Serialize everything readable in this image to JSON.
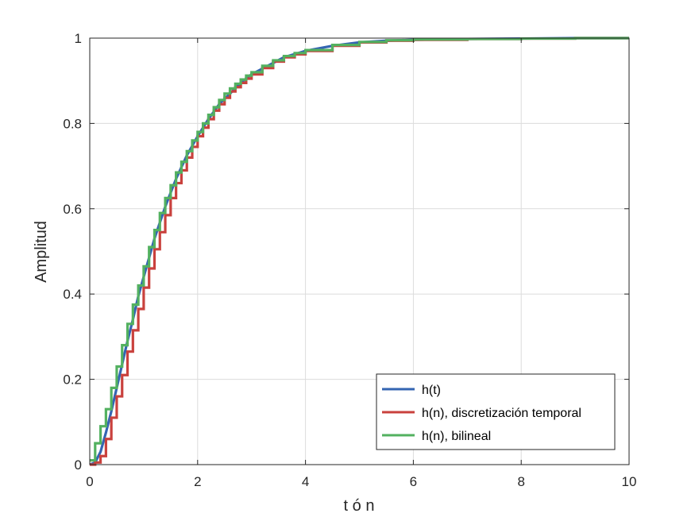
{
  "chart_data": {
    "type": "line",
    "title": "",
    "xlabel": "t ó n",
    "ylabel": "Amplitud",
    "xlim": [
      0,
      10
    ],
    "ylim": [
      0,
      1
    ],
    "xticks": [
      0,
      2,
      4,
      6,
      8,
      10
    ],
    "yticks": [
      0,
      0.2,
      0.4,
      0.6,
      0.8,
      1
    ],
    "xtick_labels": [
      "0",
      "2",
      "4",
      "6",
      "8",
      "10"
    ],
    "ytick_labels": [
      "0",
      "0.2",
      "0.4",
      "0.6",
      "0.8",
      "1"
    ],
    "grid": true,
    "legend_position": "bottom-right",
    "series": [
      {
        "name": "h(t)",
        "color": "#3465b2",
        "style": "continuous",
        "x": [
          0,
          0.1,
          0.2,
          0.3,
          0.4,
          0.5,
          0.6,
          0.7,
          0.8,
          0.9,
          1.0,
          1.2,
          1.4,
          1.6,
          1.8,
          2.0,
          2.2,
          2.4,
          2.6,
          2.8,
          3.0,
          3.3,
          3.6,
          4.0,
          4.5,
          5.0,
          5.5,
          6.0,
          7.0,
          8.0,
          9.0,
          10.0
        ],
        "values": [
          0,
          0.005,
          0.03,
          0.075,
          0.125,
          0.18,
          0.235,
          0.29,
          0.34,
          0.395,
          0.44,
          0.53,
          0.605,
          0.67,
          0.725,
          0.77,
          0.81,
          0.845,
          0.87,
          0.895,
          0.915,
          0.935,
          0.955,
          0.97,
          0.982,
          0.99,
          0.994,
          0.996,
          0.998,
          0.999,
          1.0,
          1.0
        ]
      },
      {
        "name": "h(n), discretización temporal",
        "color": "#c9413d",
        "style": "step",
        "x": [
          0,
          0.1,
          0.2,
          0.3,
          0.4,
          0.5,
          0.6,
          0.7,
          0.8,
          0.9,
          1.0,
          1.1,
          1.2,
          1.3,
          1.4,
          1.5,
          1.6,
          1.7,
          1.8,
          1.9,
          2.0,
          2.1,
          2.2,
          2.3,
          2.4,
          2.5,
          2.6,
          2.7,
          2.8,
          2.9,
          3.0,
          3.2,
          3.4,
          3.6,
          3.8,
          4.0,
          4.5,
          5.0,
          5.5,
          6.0,
          7.0,
          8.0,
          9.0,
          10.0
        ],
        "values": [
          0,
          0.005,
          0.02,
          0.06,
          0.11,
          0.16,
          0.21,
          0.265,
          0.315,
          0.365,
          0.415,
          0.46,
          0.505,
          0.545,
          0.585,
          0.625,
          0.66,
          0.69,
          0.72,
          0.745,
          0.77,
          0.79,
          0.81,
          0.83,
          0.845,
          0.86,
          0.875,
          0.885,
          0.895,
          0.905,
          0.915,
          0.93,
          0.945,
          0.955,
          0.962,
          0.97,
          0.982,
          0.99,
          0.994,
          0.996,
          0.998,
          0.999,
          1.0,
          1.0
        ]
      },
      {
        "name": "h(n), bilineal",
        "color": "#53b160",
        "style": "step",
        "x": [
          0,
          0.1,
          0.2,
          0.3,
          0.4,
          0.5,
          0.6,
          0.7,
          0.8,
          0.9,
          1.0,
          1.1,
          1.2,
          1.3,
          1.4,
          1.5,
          1.6,
          1.7,
          1.8,
          1.9,
          2.0,
          2.1,
          2.2,
          2.3,
          2.4,
          2.5,
          2.6,
          2.7,
          2.8,
          2.9,
          3.0,
          3.2,
          3.4,
          3.6,
          3.8,
          4.0,
          4.5,
          5.0,
          5.5,
          6.0,
          7.0,
          8.0,
          9.0,
          10.0
        ],
        "values": [
          0.01,
          0.05,
          0.09,
          0.13,
          0.18,
          0.23,
          0.28,
          0.33,
          0.375,
          0.42,
          0.465,
          0.51,
          0.55,
          0.59,
          0.625,
          0.655,
          0.685,
          0.71,
          0.735,
          0.76,
          0.78,
          0.8,
          0.82,
          0.838,
          0.855,
          0.87,
          0.882,
          0.893,
          0.903,
          0.912,
          0.92,
          0.935,
          0.948,
          0.958,
          0.965,
          0.972,
          0.984,
          0.991,
          0.995,
          0.997,
          0.998,
          0.999,
          1.0,
          1.0
        ]
      }
    ]
  }
}
